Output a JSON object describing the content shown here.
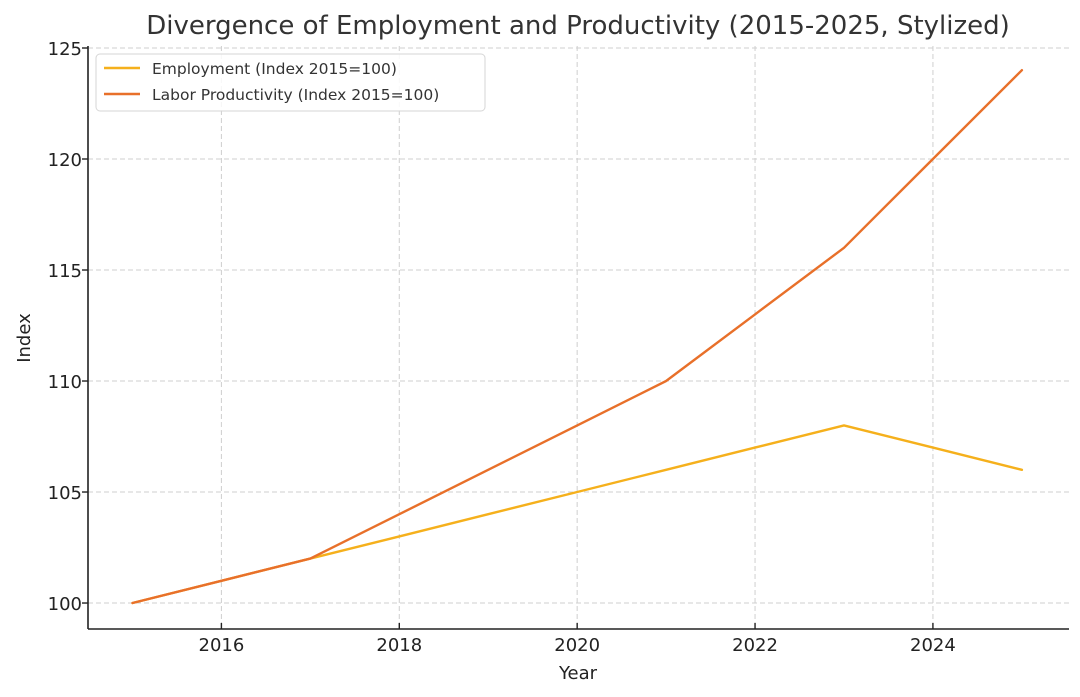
{
  "chart_data": {
    "type": "line",
    "title": "Divergence of Employment and Productivity (2015-2025, Stylized)",
    "xlabel": "Year",
    "ylabel": "Index",
    "x": [
      2015,
      2016,
      2017,
      2018,
      2019,
      2020,
      2021,
      2022,
      2023,
      2024,
      2025
    ],
    "series": [
      {
        "name": "Employment (Index 2015=100)",
        "color": "#F5B01C",
        "values": [
          100,
          101,
          102,
          103,
          104,
          105,
          106,
          107,
          108,
          107,
          106
        ]
      },
      {
        "name": "Labor Productivity (Index 2015=100)",
        "color": "#E8702A",
        "values": [
          100,
          101,
          102,
          104,
          106,
          108,
          110,
          113,
          116,
          120,
          124
        ]
      }
    ],
    "xlim": [
      2014.5,
      2025.53
    ],
    "ylim": [
      98.83,
      125.09
    ],
    "xticks": [
      2016,
      2018,
      2020,
      2022,
      2024
    ],
    "yticks": [
      100,
      105,
      110,
      115,
      120,
      125
    ],
    "grid": true,
    "legend_position": "top-left"
  }
}
